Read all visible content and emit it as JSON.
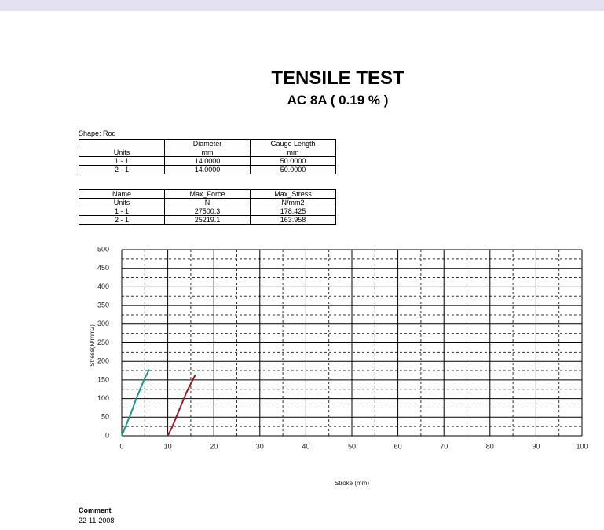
{
  "header": {
    "title": "TENSILE TEST",
    "subtitle": "AC 8A ( 0.19 % )"
  },
  "shape": "Shape: Rod",
  "table1": {
    "rows": [
      [
        "",
        "Diameter",
        "Gauge Length"
      ],
      [
        "Units",
        "mm",
        "mm"
      ],
      [
        "1 - 1",
        "14.0000",
        "50.0000"
      ],
      [
        "2 - 1",
        "14.0000",
        "50.0000"
      ]
    ]
  },
  "table2": {
    "rows": [
      [
        "Name",
        "Max_Force",
        "Max_Stress"
      ],
      [
        "Units",
        "N",
        "N/mm2"
      ],
      [
        "1 - 1",
        "27500.3",
        "178.425"
      ],
      [
        "2 - 1",
        "25219.1",
        "163.958"
      ]
    ]
  },
  "chart_data": {
    "type": "line",
    "xlabel": "Stroke (mm)",
    "ylabel": "Stress(N/mm2)",
    "xlim": [
      0,
      100
    ],
    "xticks": [
      0,
      10,
      20,
      30,
      40,
      50,
      60,
      70,
      80,
      90,
      100
    ],
    "ylim": [
      0,
      500
    ],
    "yticks": [
      0,
      50,
      100,
      150,
      200,
      250,
      300,
      350,
      400,
      450,
      500
    ],
    "grid": true,
    "series": [
      {
        "color": "#1a9a8a",
        "x": [
          0,
          1,
          2,
          3,
          4,
          5,
          6
        ],
        "values": [
          0,
          30,
          60,
          95,
          125,
          155,
          178
        ]
      },
      {
        "color": "#9a1c1c",
        "x": [
          10,
          11,
          12,
          13,
          14,
          15,
          16
        ],
        "values": [
          0,
          25,
          55,
          85,
          115,
          140,
          164
        ]
      }
    ]
  },
  "comment": {
    "label": "Comment",
    "date": "22-11-2008"
  }
}
